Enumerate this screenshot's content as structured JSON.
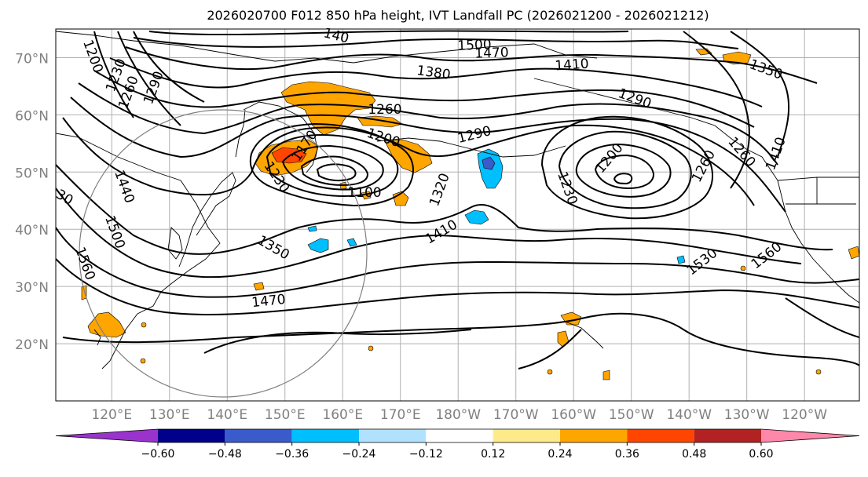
{
  "title": "2026020700 F012 850 hPa height, IVT Landfall PC (2026021200 - 2026021212)",
  "lat_labels": [
    "70°N",
    "60°N",
    "50°N",
    "40°N",
    "30°N",
    "20°N"
  ],
  "lat_values": [
    70,
    60,
    50,
    40,
    30,
    20
  ],
  "lon_labels": [
    "120°E",
    "130°E",
    "140°E",
    "150°E",
    "160°E",
    "170°E",
    "180°W",
    "170°W",
    "160°W",
    "150°W",
    "140°W",
    "130°W",
    "120°W"
  ],
  "lon_values": [
    120,
    130,
    140,
    150,
    160,
    170,
    180,
    190,
    200,
    210,
    220,
    230,
    240
  ],
  "contour_labels": [
    {
      "text": "1500"
    },
    {
      "text": "1470"
    },
    {
      "text": "1410"
    },
    {
      "text": "1380"
    },
    {
      "text": "1350"
    },
    {
      "text": "1290"
    },
    {
      "text": "1260"
    },
    {
      "text": "1200"
    },
    {
      "text": "1290"
    },
    {
      "text": "1200"
    },
    {
      "text": "1230"
    },
    {
      "text": "1260"
    },
    {
      "text": "1320"
    },
    {
      "text": "1410"
    },
    {
      "text": "1350"
    },
    {
      "text": "1470"
    },
    {
      "text": "1530"
    },
    {
      "text": "1560"
    },
    {
      "text": "1200"
    },
    {
      "text": "1230"
    },
    {
      "text": "1260"
    },
    {
      "text": "1290"
    },
    {
      "text": "1440"
    },
    {
      "text": "1500"
    },
    {
      "text": "1560"
    },
    {
      "text": "1170"
    },
    {
      "text": "1230"
    },
    {
      "text": "1100"
    },
    {
      "text": "140"
    },
    {
      "text": "30"
    },
    {
      "text": "1410"
    },
    {
      "text": "1260"
    }
  ],
  "colorbar": {
    "ticks": [
      "−0.60",
      "−0.48",
      "−0.36",
      "−0.24",
      "−0.12",
      "0.12",
      "0.24",
      "0.36",
      "0.48",
      "0.60"
    ],
    "colors": [
      "#9933cc",
      "#00008b",
      "#3a5bcc",
      "#00bfff",
      "#b0e2ff",
      "#ffffff",
      "#ffea8a",
      "#ffa500",
      "#ff4500",
      "#b22222",
      "#ff88aa"
    ]
  }
}
